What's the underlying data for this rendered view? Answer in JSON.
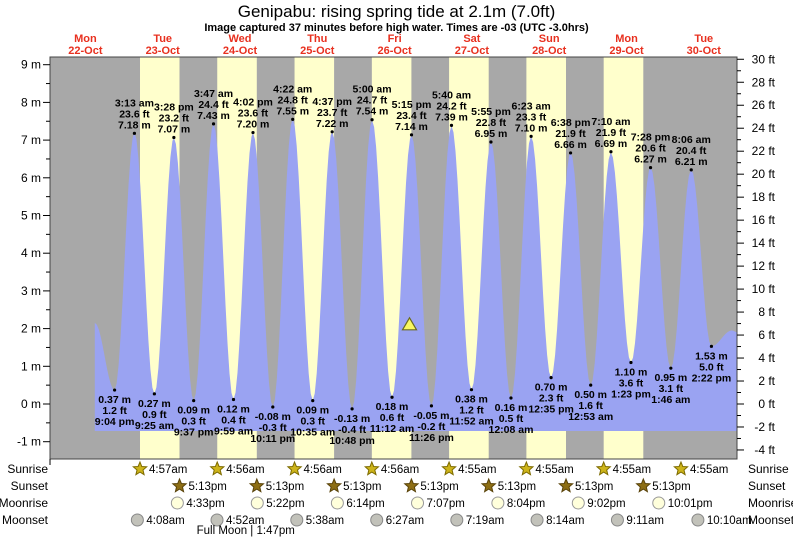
{
  "title": "Genipabu: rising  spring tide at 2.1m (7.0ft)",
  "subtitle": "Image captured 37 minutes before high water. Times are -03 (UTC -3.0hrs)",
  "days": [
    {
      "dow": "Mon",
      "date": "22-Oct",
      "day": 22
    },
    {
      "dow": "Tue",
      "date": "23-Oct",
      "day": 23
    },
    {
      "dow": "Wed",
      "date": "24-Oct",
      "day": 24
    },
    {
      "dow": "Thu",
      "date": "25-Oct",
      "day": 25
    },
    {
      "dow": "Fri",
      "date": "26-Oct",
      "day": 26
    },
    {
      "dow": "Sat",
      "date": "27-Oct",
      "day": 27
    },
    {
      "dow": "Sun",
      "date": "28-Oct",
      "day": 28
    },
    {
      "dow": "Mon",
      "date": "29-Oct",
      "day": 29
    },
    {
      "dow": "Tue",
      "date": "30-Oct",
      "day": 30
    }
  ],
  "axes": {
    "left_labels": [
      "9 m",
      "8 m",
      "7 m",
      "6 m",
      "5 m",
      "4 m",
      "3 m",
      "2 m",
      "1 m",
      "0 m",
      "-1 m"
    ],
    "right_labels": [
      "30 ft",
      "28 ft",
      "26 ft",
      "24 ft",
      "22 ft",
      "20 ft",
      "18 ft",
      "16 ft",
      "14 ft",
      "12 ft",
      "10 ft",
      "8 ft",
      "6 ft",
      "4 ft",
      "2 ft",
      "0 ft",
      "-2 ft",
      "-4 ft"
    ]
  },
  "chart_data": {
    "type": "area",
    "title": "Genipabu: rising  spring tide at 2.1m (7.0ft)",
    "ylabel_left": "meters",
    "ylabel_right": "feet",
    "y_axis_left": {
      "unit": "m",
      "min": -1,
      "max": 9,
      "tick_step": 1
    },
    "y_axis_right": {
      "unit": "ft",
      "min": -4,
      "max": 30,
      "tick_step": 2
    },
    "grid": false,
    "legend": false,
    "high_tides": [
      {
        "day": 23,
        "time": "3:13 am",
        "ft": "23.6 ft",
        "m": "7.18 m"
      },
      {
        "day": 23,
        "time": "3:28 pm",
        "ft": "23.2 ft",
        "m": "7.07 m"
      },
      {
        "day": 24,
        "time": "3:47 am",
        "ft": "24.4 ft",
        "m": "7.43 m"
      },
      {
        "day": 24,
        "time": "4:02 pm",
        "ft": "23.6 ft",
        "m": "7.20 m"
      },
      {
        "day": 25,
        "time": "4:22 am",
        "ft": "24.8 ft",
        "m": "7.55 m"
      },
      {
        "day": 25,
        "time": "4:37 pm",
        "ft": "23.7 ft",
        "m": "7.22 m"
      },
      {
        "day": 26,
        "time": "5:00 am",
        "ft": "24.7 ft",
        "m": "7.54 m"
      },
      {
        "day": 26,
        "time": "5:15 pm",
        "ft": "23.4 ft",
        "m": "7.14 m"
      },
      {
        "day": 27,
        "time": "5:40 am",
        "ft": "24.2 ft",
        "m": "7.39 m"
      },
      {
        "day": 27,
        "time": "5:55 pm",
        "ft": "22.8 ft",
        "m": "6.95 m"
      },
      {
        "day": 28,
        "time": "6:23 am",
        "ft": "23.3 ft",
        "m": "7.10 m"
      },
      {
        "day": 28,
        "time": "6:38 pm",
        "ft": "21.9 ft",
        "m": "6.66 m"
      },
      {
        "day": 29,
        "time": "7:10 am",
        "ft": "21.9 ft",
        "m": "6.69 m"
      },
      {
        "day": 29,
        "time": "7:28 pm",
        "ft": "20.6 ft",
        "m": "6.27 m"
      },
      {
        "day": 30,
        "time": "8:06 am",
        "ft": "20.4 ft",
        "m": "6.21 m"
      }
    ],
    "low_tides": [
      {
        "day": 22,
        "time": "9:04 pm",
        "m": "0.37 m",
        "ft": "1.2 ft"
      },
      {
        "day": 23,
        "time": "9:25 am",
        "m": "0.27 m",
        "ft": "0.9 ft"
      },
      {
        "day": 23,
        "time": "9:37 pm",
        "m": "0.09 m",
        "ft": "0.3 ft"
      },
      {
        "day": 24,
        "time": "9:59 am",
        "m": "0.12 m",
        "ft": "0.4 ft"
      },
      {
        "day": 24,
        "time": "10:11 pm",
        "m": "-0.08 m",
        "ft": "-0.3 ft"
      },
      {
        "day": 25,
        "time": "10:35 am",
        "m": "0.09 m",
        "ft": "0.3 ft"
      },
      {
        "day": 25,
        "time": "10:48 pm",
        "m": "-0.13 m",
        "ft": "-0.4 ft"
      },
      {
        "day": 26,
        "time": "11:12 am",
        "m": "0.18 m",
        "ft": "0.6 ft"
      },
      {
        "day": 26,
        "time": "11:26 pm",
        "m": "-0.05 m",
        "ft": "-0.2 ft"
      },
      {
        "day": 27,
        "time": "11:52 am",
        "m": "0.38 m",
        "ft": "1.2 ft"
      },
      {
        "day": 28,
        "time": "12:08 am",
        "m": "0.16 m",
        "ft": "0.5 ft"
      },
      {
        "day": 28,
        "time": "12:35 pm",
        "m": "0.70 m",
        "ft": "2.3 ft"
      },
      {
        "day": 29,
        "time": "12:53 am",
        "m": "0.50 m",
        "ft": "1.6 ft"
      },
      {
        "day": 29,
        "time": "1:23 pm",
        "m": "1.10 m",
        "ft": "3.6 ft"
      },
      {
        "day": 30,
        "time": "1:46 am",
        "m": "0.95 m",
        "ft": "3.1 ft"
      },
      {
        "day": 30,
        "time": "2:22 pm",
        "m": "1.53 m",
        "ft": "5.0 ft"
      }
    ],
    "current_marker": {
      "day": 26,
      "time": "4:38 pm",
      "height_m": 2.1
    }
  },
  "astro": {
    "row_labels": [
      "Sunrise",
      "Sunset",
      "Moonrise",
      "Moonset"
    ],
    "sunrise": [
      {
        "day": 23,
        "time": "4:57am"
      },
      {
        "day": 24,
        "time": "4:56am"
      },
      {
        "day": 25,
        "time": "4:56am"
      },
      {
        "day": 26,
        "time": "4:56am"
      },
      {
        "day": 27,
        "time": "4:55am"
      },
      {
        "day": 28,
        "time": "4:55am"
      },
      {
        "day": 29,
        "time": "4:55am"
      },
      {
        "day": 30,
        "time": "4:55am"
      }
    ],
    "sunset": [
      {
        "day": 23,
        "time": "5:13pm"
      },
      {
        "day": 24,
        "time": "5:13pm"
      },
      {
        "day": 25,
        "time": "5:13pm"
      },
      {
        "day": 26,
        "time": "5:13pm"
      },
      {
        "day": 27,
        "time": "5:13pm"
      },
      {
        "day": 28,
        "time": "5:13pm"
      },
      {
        "day": 29,
        "time": "5:13pm"
      }
    ],
    "moonrise": [
      {
        "day": 23,
        "time": "4:33pm"
      },
      {
        "day": 24,
        "time": "5:22pm"
      },
      {
        "day": 25,
        "time": "6:14pm"
      },
      {
        "day": 26,
        "time": "7:07pm"
      },
      {
        "day": 27,
        "time": "8:04pm"
      },
      {
        "day": 28,
        "time": "9:02pm"
      },
      {
        "day": 29,
        "time": "10:01pm"
      }
    ],
    "moonset": [
      {
        "day": 23,
        "time": "4:08am"
      },
      {
        "day": 24,
        "time": "4:52am"
      },
      {
        "day": 25,
        "time": "5:38am"
      },
      {
        "day": 26,
        "time": "6:27am"
      },
      {
        "day": 27,
        "time": "7:19am"
      },
      {
        "day": 28,
        "time": "8:14am"
      },
      {
        "day": 29,
        "time": "9:11am"
      },
      {
        "day": 30,
        "time": "10:10am"
      }
    ],
    "full_moon": "Full Moon | 1:47pm",
    "full_moon_day": 24,
    "full_moon_time": "1:47pm"
  },
  "colors": {
    "night_band": "#a8a8a8",
    "day_band": "#ffffcc",
    "tide_fill": "#9aa3f2",
    "day_label": "#e8301f",
    "sunrise_star": "#cdb41a",
    "sunrise_star_edge": "#7d6b00",
    "sunset_star": "#8d6e14",
    "sunset_star_edge": "#59430a",
    "moonrise_fill": "#ffffdb",
    "moonrise_edge": "#999999",
    "moonset_fill": "#c2c2ba",
    "moonset_edge": "#888888",
    "marker_triangle": "#f8f860",
    "marker_triangle_edge": "#6a6a20"
  }
}
